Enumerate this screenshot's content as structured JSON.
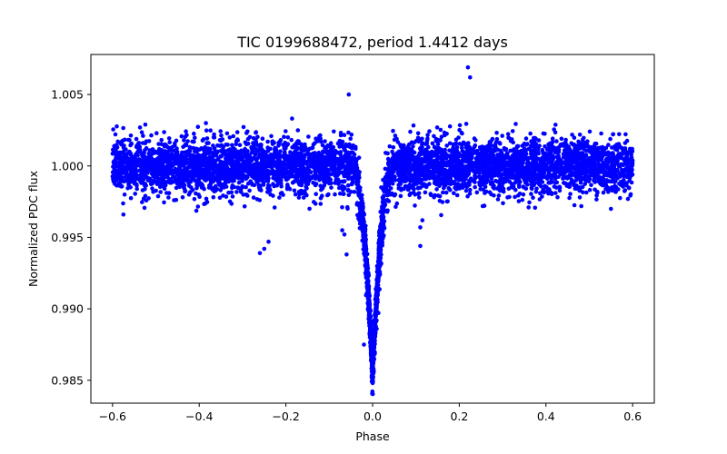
{
  "chart_data": {
    "type": "scatter",
    "title": "TIC 0199688472, period 1.4412 days",
    "xlabel": "Phase",
    "ylabel": "Normalized PDC flux",
    "xlim": [
      -0.65,
      0.65
    ],
    "ylim": [
      0.9834,
      1.0078
    ],
    "x_ticks": [
      -0.6,
      -0.4,
      -0.2,
      0.0,
      0.2,
      0.4,
      0.6
    ],
    "x_tick_labels": [
      "−0.6",
      "−0.4",
      "−0.2",
      "0.0",
      "0.2",
      "0.4",
      "0.6"
    ],
    "y_ticks": [
      0.985,
      0.99,
      0.995,
      1.0,
      1.005
    ],
    "y_tick_labels": [
      "0.985",
      "0.990",
      "0.995",
      "1.000",
      "1.005"
    ],
    "grid": false,
    "marker_color": "#0000ff",
    "series": [
      {
        "phase_range": [
          -0.6,
          0.6
        ],
        "baseline_flux": 1.0,
        "transit_center": 0.0,
        "transit_min_flux": 0.9855,
        "outliers": [
          {
            "x": 0.22,
            "y": 1.0069
          },
          {
            "x": 0.225,
            "y": 1.0062
          },
          {
            "x": -0.055,
            "y": 1.005
          },
          {
            "x": -0.26,
            "y": 0.9939
          },
          {
            "x": -0.25,
            "y": 0.9942
          },
          {
            "x": -0.24,
            "y": 0.9947
          },
          {
            "x": -0.06,
            "y": 0.9938
          },
          {
            "x": -0.065,
            "y": 0.9952
          },
          {
            "x": -0.07,
            "y": 0.9955
          },
          {
            "x": 0.11,
            "y": 0.9944
          },
          {
            "x": 0.11,
            "y": 0.9957
          },
          {
            "x": 0.115,
            "y": 0.9962
          },
          {
            "x": -0.575,
            "y": 0.9966
          },
          {
            "x": 0.36,
            "y": 0.9971
          },
          {
            "x": 0.55,
            "y": 0.997
          },
          {
            "x": 0.02,
            "y": 0.9985
          },
          {
            "x": -0.02,
            "y": 0.9875
          }
        ]
      }
    ]
  }
}
